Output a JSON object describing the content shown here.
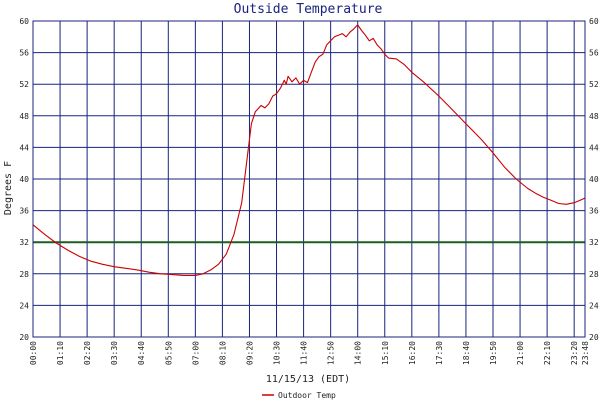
{
  "chart_data": {
    "type": "line",
    "title": "Outside Temperature",
    "xlabel": "11/15/13 (EDT)",
    "ylabel": "Degrees F",
    "ylim": [
      20,
      60
    ],
    "xlim": [
      0,
      1428
    ],
    "y_ticks": [
      "20",
      "24",
      "28",
      "32",
      "36",
      "40",
      "44",
      "48",
      "52",
      "56",
      "60"
    ],
    "x_tick_labels": [
      "00:00",
      "01:10",
      "02:20",
      "03:30",
      "04:40",
      "05:50",
      "07:00",
      "08:10",
      "09:20",
      "10:30",
      "11:40",
      "12:50",
      "14:00",
      "15:10",
      "16:20",
      "17:30",
      "18:40",
      "19:50",
      "21:00",
      "22:10",
      "23:20",
      "23:48"
    ],
    "x_tick_minutes": [
      0,
      70,
      140,
      210,
      280,
      350,
      420,
      490,
      560,
      630,
      700,
      770,
      840,
      910,
      980,
      1050,
      1120,
      1190,
      1260,
      1330,
      1400,
      1428
    ],
    "grid": true,
    "reference_line": {
      "y": 32,
      "color": "#1b5e20"
    },
    "legend_position": "bottom-center",
    "colors": {
      "background": "#ffffff",
      "grid": "#1a237e",
      "series": "#cc0000",
      "reference": "#1b5e20"
    },
    "series": [
      {
        "name": "Outdoor Temp",
        "points": [
          [
            0,
            34.2
          ],
          [
            30,
            33.0
          ],
          [
            60,
            31.9
          ],
          [
            90,
            31.0
          ],
          [
            120,
            30.2
          ],
          [
            150,
            29.6
          ],
          [
            180,
            29.2
          ],
          [
            210,
            28.9
          ],
          [
            240,
            28.7
          ],
          [
            270,
            28.5
          ],
          [
            300,
            28.2
          ],
          [
            330,
            28.0
          ],
          [
            360,
            27.9
          ],
          [
            390,
            27.8
          ],
          [
            420,
            27.8
          ],
          [
            440,
            28.0
          ],
          [
            460,
            28.5
          ],
          [
            480,
            29.2
          ],
          [
            500,
            30.5
          ],
          [
            520,
            33.0
          ],
          [
            540,
            37.0
          ],
          [
            555,
            43.0
          ],
          [
            565,
            47.0
          ],
          [
            575,
            48.5
          ],
          [
            590,
            49.3
          ],
          [
            600,
            49.0
          ],
          [
            610,
            49.5
          ],
          [
            620,
            50.5
          ],
          [
            630,
            50.8
          ],
          [
            640,
            51.5
          ],
          [
            650,
            52.5
          ],
          [
            655,
            52.0
          ],
          [
            660,
            53.0
          ],
          [
            670,
            52.3
          ],
          [
            680,
            52.8
          ],
          [
            690,
            52.0
          ],
          [
            700,
            52.5
          ],
          [
            710,
            52.2
          ],
          [
            720,
            53.5
          ],
          [
            730,
            54.8
          ],
          [
            740,
            55.5
          ],
          [
            750,
            55.8
          ],
          [
            760,
            57.0
          ],
          [
            770,
            57.5
          ],
          [
            780,
            58.0
          ],
          [
            790,
            58.2
          ],
          [
            800,
            58.4
          ],
          [
            810,
            58.0
          ],
          [
            820,
            58.6
          ],
          [
            830,
            59.0
          ],
          [
            840,
            59.5
          ],
          [
            850,
            58.8
          ],
          [
            860,
            58.2
          ],
          [
            870,
            57.5
          ],
          [
            880,
            57.8
          ],
          [
            890,
            57.0
          ],
          [
            900,
            56.5
          ],
          [
            910,
            55.8
          ],
          [
            920,
            55.3
          ],
          [
            940,
            55.2
          ],
          [
            960,
            54.5
          ],
          [
            980,
            53.5
          ],
          [
            1010,
            52.3
          ],
          [
            1050,
            50.5
          ],
          [
            1080,
            49.0
          ],
          [
            1120,
            47.0
          ],
          [
            1160,
            45.0
          ],
          [
            1190,
            43.3
          ],
          [
            1220,
            41.5
          ],
          [
            1250,
            40.0
          ],
          [
            1280,
            38.8
          ],
          [
            1300,
            38.2
          ],
          [
            1320,
            37.7
          ],
          [
            1340,
            37.3
          ],
          [
            1360,
            36.9
          ],
          [
            1380,
            36.8
          ],
          [
            1400,
            37.0
          ],
          [
            1420,
            37.4
          ],
          [
            1428,
            37.6
          ]
        ]
      }
    ]
  }
}
